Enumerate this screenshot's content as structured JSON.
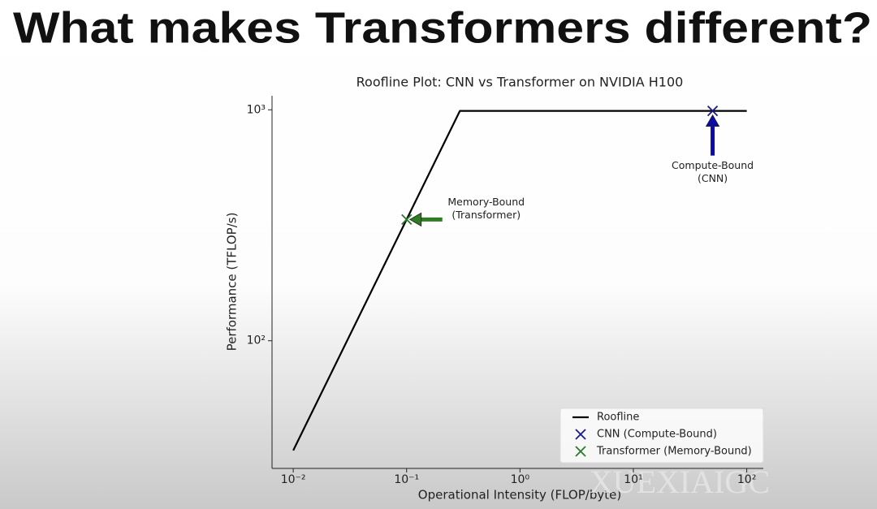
{
  "slide_title": "What makes Transformers different?",
  "watermark": "XUEXIAIGC",
  "chart_data": {
    "type": "line",
    "title": "Roofline Plot: CNN vs Transformer on NVIDIA H100",
    "x_label": "Operational Intensity (FLOP/byte)",
    "y_label": "Performance (TFLOP/s)",
    "xscale": "log",
    "yscale": "log",
    "xlim": [
      0.0065,
      140
    ],
    "ylim": [
      28,
      1150
    ],
    "xticks": [
      {
        "value": 0.01,
        "label": "10⁻²"
      },
      {
        "value": 0.1,
        "label": "10⁻¹"
      },
      {
        "value": 1,
        "label": "10⁰"
      },
      {
        "value": 10,
        "label": "10¹"
      },
      {
        "value": 100,
        "label": "10²"
      }
    ],
    "yticks": [
      {
        "value": 100,
        "label": "10²"
      },
      {
        "value": 1000,
        "label": "10³"
      }
    ],
    "grid": false,
    "legend": "lower right",
    "series": [
      {
        "name": "Roofline",
        "color": "#000000",
        "mark": "line",
        "x": [
          0.01,
          0.295,
          100
        ],
        "values": [
          33.5,
          989,
          989
        ]
      },
      {
        "name": "CNN (Compute-Bound)",
        "color": "#1a1a8c",
        "mark": "x",
        "x": [
          50
        ],
        "values": [
          989
        ],
        "annotation": [
          "Compute-Bound",
          "(CNN)"
        ],
        "arrow_color": "#0a0aa8"
      },
      {
        "name": "Transformer (Memory-Bound)",
        "color": "#2a7a2a",
        "mark": "x",
        "x": [
          0.1
        ],
        "values": [
          335
        ],
        "annotation": [
          "Memory-Bound",
          "(Transformer)"
        ],
        "arrow_color": "#2e7d22"
      }
    ]
  }
}
